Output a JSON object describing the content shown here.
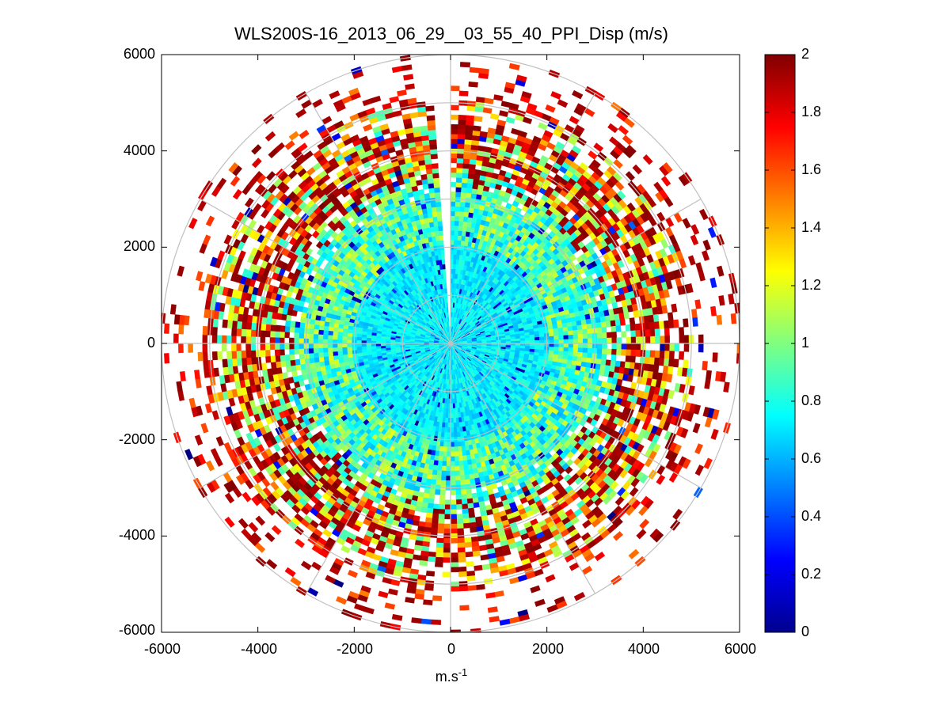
{
  "chart_data": {
    "type": "heatmap",
    "subtype": "polar-ppi",
    "title": "WLS200S-16_2013_06_29__03_55_40_PPI_Disp (m/s)",
    "xlabel": "m.s",
    "xlabel_superscript": "-1",
    "ylabel": "",
    "xlim": [
      -6000,
      6000
    ],
    "ylim": [
      -6000,
      6000
    ],
    "x_ticks": [
      "-6000",
      "-4000",
      "-2000",
      "0",
      "2000",
      "4000",
      "6000"
    ],
    "y_ticks": [
      "6000",
      "4000",
      "2000",
      "0",
      "-2000",
      "-4000",
      "-6000"
    ],
    "grid": "polar",
    "polar_grid_radii": [
      1000,
      2000,
      3000,
      4000,
      5000,
      6000
    ],
    "polar_spoke_angles_deg": [
      0,
      30,
      60,
      90,
      120,
      150,
      180,
      210,
      240,
      270,
      300,
      330
    ],
    "max_range": 6000,
    "colorbar": {
      "colormap": "jet",
      "clim": [
        0,
        2
      ],
      "ticks": [
        "2",
        "1.8",
        "1.6",
        "1.4",
        "1.2",
        "1",
        "0.8",
        "0.6",
        "0.4",
        "0.2",
        "0"
      ]
    },
    "data_description_bands": [
      {
        "range_from": 0,
        "range_to": 2000,
        "value_min": 0.6,
        "value_max": 0.85
      },
      {
        "range_from": 2000,
        "range_to": 3500,
        "value_min": 0.6,
        "value_max": 1.2
      },
      {
        "range_from": 3500,
        "range_to": 5000,
        "value_min": 0.8,
        "value_max": 2.0
      },
      {
        "range_from": 5000,
        "range_to": 6000,
        "value_min": 1.5,
        "value_max": 2.0
      }
    ],
    "gaps": [
      {
        "azimuth_from_deg": 355,
        "azimuth_to_deg": 360,
        "range_from": 300,
        "range_to": 6000
      }
    ]
  }
}
